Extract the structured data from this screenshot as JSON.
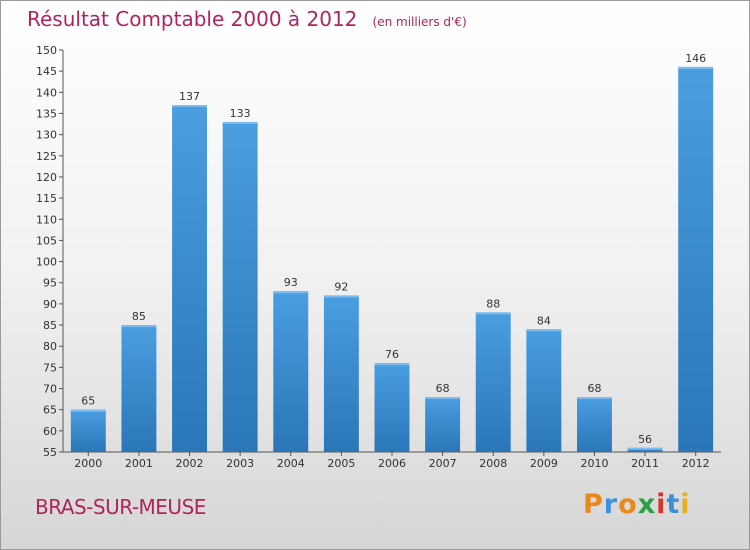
{
  "chart_data": {
    "type": "bar",
    "title": "Résultat Comptable 2000 à 2012",
    "subtitle": "(en milliers d'€)",
    "categories": [
      "2000",
      "2001",
      "2002",
      "2003",
      "2004",
      "2005",
      "2006",
      "2007",
      "2008",
      "2009",
      "2010",
      "2011",
      "2012"
    ],
    "values": [
      65,
      85,
      137,
      133,
      93,
      92,
      76,
      68,
      88,
      84,
      68,
      56,
      146
    ],
    "ylim": [
      55,
      150
    ],
    "yticks": [
      55,
      60,
      65,
      70,
      75,
      80,
      85,
      90,
      95,
      100,
      105,
      110,
      115,
      120,
      125,
      130,
      135,
      140,
      145,
      150
    ],
    "grid": false,
    "legend": "none",
    "bar_color": "#4a9ee0",
    "bar_color_dark": "#2a76b8"
  },
  "footer": {
    "commune": "BRAS-SUR-MEUSE",
    "logo_letters": [
      "P",
      "r",
      "o",
      "x",
      "i",
      "t",
      "i"
    ],
    "logo_colors": [
      "#e8891c",
      "#3c8fd8",
      "#e8891c",
      "#2aa042",
      "#d8342e",
      "#3c8fd8",
      "#e8b01c"
    ],
    "title_color": "#b0245e"
  }
}
